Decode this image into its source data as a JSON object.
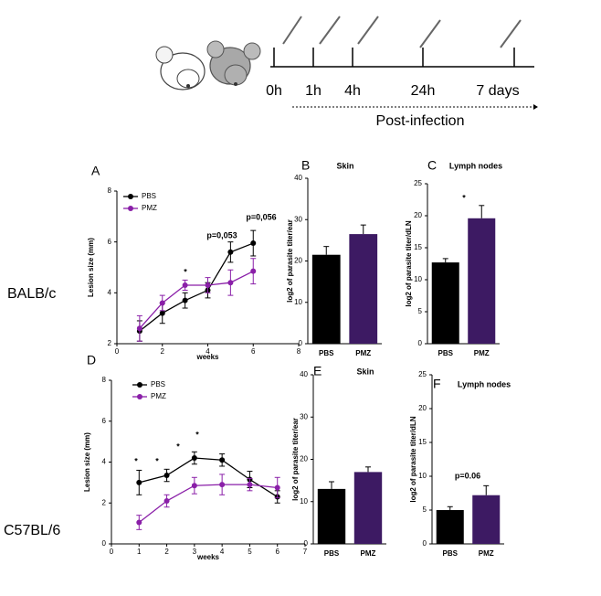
{
  "diagram": {
    "timepoints": [
      "0h",
      "1h",
      "4h",
      "24h",
      "7 days"
    ],
    "caption": "Post-infection"
  },
  "rows": [
    "BALB/c",
    "C57BL/6"
  ],
  "chart_data": [
    {
      "type": "line",
      "panel": "A",
      "xlabel": "weeks",
      "ylabel": "Lesion size (mm)",
      "x": [
        1,
        2,
        3,
        4,
        5,
        6
      ],
      "xlim": [
        0,
        8
      ],
      "xticks": [
        0,
        2,
        4,
        6,
        8
      ],
      "ylim": [
        2,
        8
      ],
      "yticks": [
        2,
        4,
        6,
        8
      ],
      "series": [
        {
          "name": "PBS",
          "color": "#000000",
          "values": [
            2.5,
            3.2,
            3.7,
            4.1,
            5.6,
            5.95
          ],
          "errors": [
            0.4,
            0.4,
            0.3,
            0.3,
            0.4,
            0.5
          ]
        },
        {
          "name": "PMZ",
          "color": "#8a1fa8",
          "values": [
            2.6,
            3.6,
            4.3,
            4.3,
            4.4,
            4.85
          ],
          "errors": [
            0.5,
            0.3,
            0.2,
            0.3,
            0.5,
            0.5
          ]
        }
      ],
      "annotations": [
        "*",
        "p=0,053",
        "p=0,056"
      ]
    },
    {
      "type": "bar",
      "panel": "B",
      "title": "Skin",
      "ylabel": "log2 of parasite titer/ear",
      "categories": [
        "PBS",
        "PMZ"
      ],
      "values": [
        21.5,
        26.5
      ],
      "errors": [
        2,
        2.2
      ],
      "colors": [
        "#000000",
        "#3d1a63"
      ],
      "ylim": [
        0,
        40
      ],
      "yticks": [
        0,
        10,
        20,
        30,
        40
      ],
      "annotations": []
    },
    {
      "type": "bar",
      "panel": "C",
      "title": "Lymph nodes",
      "ylabel": "log2 of parasite titer/dLN",
      "categories": [
        "PBS",
        "PMZ"
      ],
      "values": [
        12.7,
        19.6
      ],
      "errors": [
        0.6,
        2
      ],
      "colors": [
        "#000000",
        "#3d1a63"
      ],
      "ylim": [
        0,
        25
      ],
      "yticks": [
        0,
        5,
        10,
        15,
        20,
        25
      ],
      "annotations": [
        "*"
      ]
    },
    {
      "type": "line",
      "panel": "D",
      "xlabel": "weeks",
      "ylabel": "Lesion size (mm)",
      "x": [
        1,
        2,
        3,
        4,
        5,
        6
      ],
      "xlim": [
        0,
        7
      ],
      "xticks": [
        0,
        1,
        2,
        3,
        4,
        5,
        6,
        7
      ],
      "ylim": [
        0,
        8
      ],
      "yticks": [
        0,
        2,
        4,
        6,
        8
      ],
      "series": [
        {
          "name": "PBS",
          "color": "#000000",
          "values": [
            3.0,
            3.35,
            4.2,
            4.1,
            3.15,
            2.3
          ],
          "errors": [
            0.6,
            0.3,
            0.3,
            0.3,
            0.4,
            0.3
          ]
        },
        {
          "name": "PMZ",
          "color": "#8a1fa8",
          "values": [
            1.05,
            2.1,
            2.85,
            2.9,
            2.9,
            2.75
          ],
          "errors": [
            0.35,
            0.3,
            0.4,
            0.5,
            0.3,
            0.5
          ]
        }
      ],
      "annotations": [
        "*",
        "*",
        "*",
        "*"
      ]
    },
    {
      "type": "bar",
      "panel": "E",
      "title": "Skin",
      "ylabel": "log2 of parasite titer/ear",
      "categories": [
        "PBS",
        "PMZ"
      ],
      "values": [
        13,
        17
      ],
      "errors": [
        1.7,
        1.2
      ],
      "colors": [
        "#000000",
        "#3d1a63"
      ],
      "ylim": [
        0,
        40
      ],
      "yticks": [
        0,
        10,
        20,
        30,
        40
      ],
      "annotations": []
    },
    {
      "type": "bar",
      "panel": "F",
      "title": "Lymph nodes",
      "ylabel": "log2 of parasite titer/dLN",
      "categories": [
        "PBS",
        "PMZ"
      ],
      "values": [
        5,
        7.2
      ],
      "errors": [
        0.5,
        1.4
      ],
      "colors": [
        "#000000",
        "#3d1a63"
      ],
      "ylim": [
        0,
        25
      ],
      "yticks": [
        0,
        5,
        10,
        15,
        20,
        25
      ],
      "annotations": [
        "p=0.06"
      ]
    }
  ]
}
